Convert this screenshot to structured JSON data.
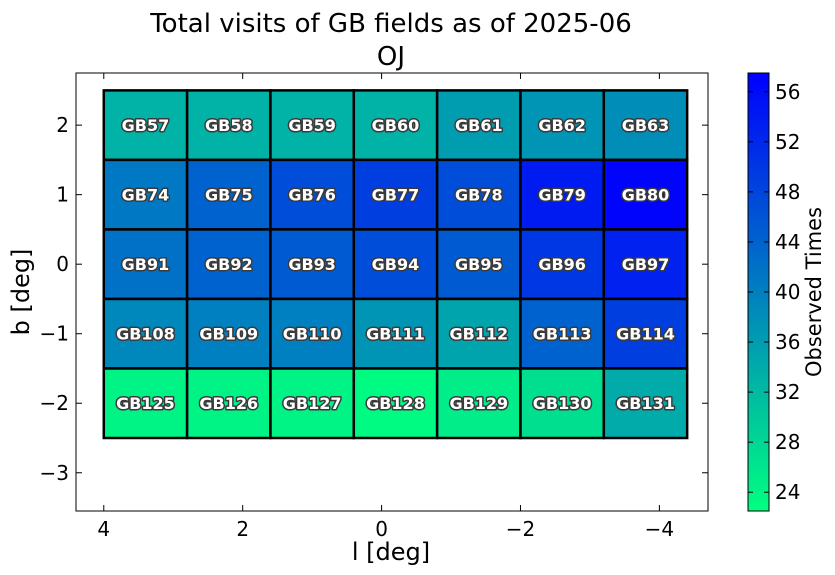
{
  "chart_data": {
    "type": "heatmap",
    "title": "Total visits of GB fields as of 2025-06",
    "subtitle": "OJ",
    "xlabel": "l [deg]",
    "ylabel": "b [deg]",
    "colorbar_label": "Observed Times",
    "x_axis_inverted": true,
    "xlim": [
      4.4,
      -4.7
    ],
    "ylim": [
      -3.55,
      2.75
    ],
    "x_ticks": [
      4,
      2,
      0,
      -2,
      -4
    ],
    "x_tick_labels": [
      "4",
      "2",
      "0",
      "−2",
      "−4"
    ],
    "y_ticks": [
      2,
      1,
      0,
      -1,
      -2,
      -3
    ],
    "y_tick_labels": [
      "2",
      "1",
      "0",
      "−1",
      "−2",
      "−3"
    ],
    "colorbar_range": [
      22.5,
      57.5
    ],
    "colorbar_ticks": [
      24,
      28,
      32,
      36,
      40,
      44,
      48,
      52,
      56
    ],
    "colormap": "winter",
    "colormap_colors": [
      "#00ff80",
      "#0000ff"
    ],
    "columns_l_centers": [
      3.4,
      2.2,
      1.0,
      -0.2,
      -1.4,
      -2.6,
      -3.8
    ],
    "rows_b_centers": [
      2.0,
      1.0,
      0.0,
      -1.0,
      -2.0
    ],
    "cell_width_deg": 1.2,
    "cell_height_deg": 1.0,
    "fields": [
      [
        "GB57",
        "GB58",
        "GB59",
        "GB60",
        "GB61",
        "GB62",
        "GB63"
      ],
      [
        "GB74",
        "GB75",
        "GB76",
        "GB77",
        "GB78",
        "GB79",
        "GB80"
      ],
      [
        "GB91",
        "GB92",
        "GB93",
        "GB94",
        "GB95",
        "GB96",
        "GB97"
      ],
      [
        "GB108",
        "GB109",
        "GB110",
        "GB111",
        "GB112",
        "GB113",
        "GB114"
      ],
      [
        "GB125",
        "GB126",
        "GB127",
        "GB128",
        "GB129",
        "GB130",
        "GB131"
      ]
    ],
    "values": [
      [
        33,
        33,
        33,
        33,
        36,
        37,
        38
      ],
      [
        41,
        44,
        47,
        49,
        47,
        54,
        57
      ],
      [
        42,
        44,
        45,
        47,
        45,
        50,
        53
      ],
      [
        39,
        40,
        40,
        37,
        35,
        44,
        49
      ],
      [
        24,
        24,
        24,
        23,
        25,
        27,
        34
      ]
    ]
  }
}
